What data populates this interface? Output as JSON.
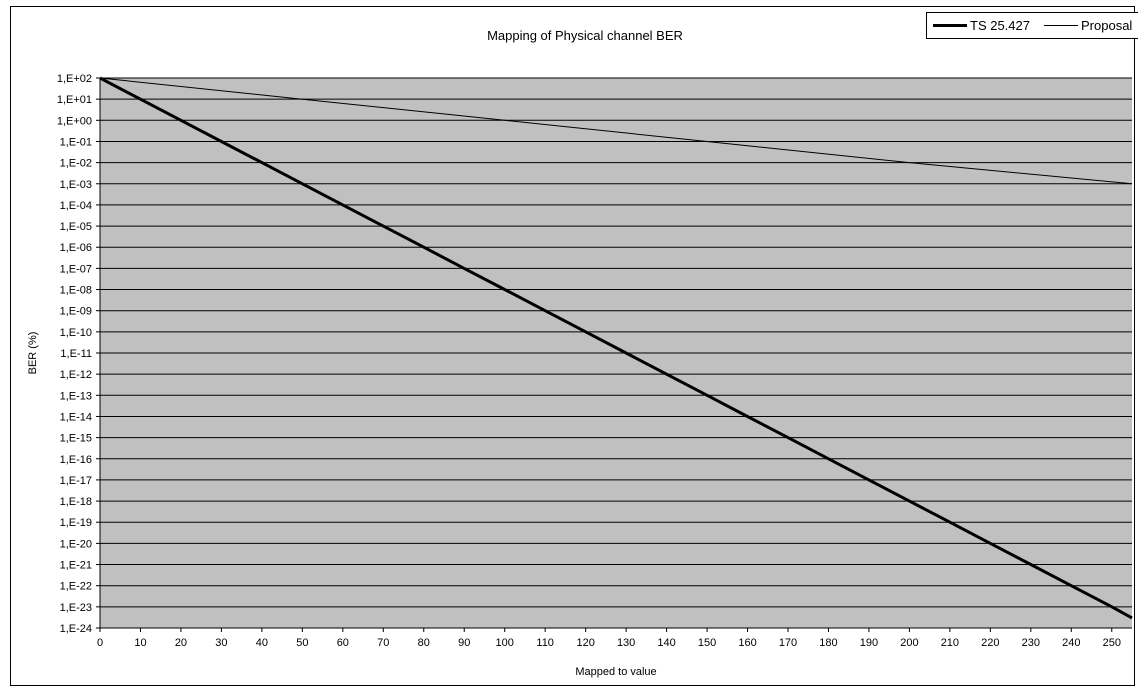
{
  "chart_data": {
    "type": "line",
    "title": "Mapping of Physical channel BER",
    "xlabel": "Mapped to value",
    "ylabel": "BER (%)",
    "xlim": [
      0,
      255
    ],
    "ylim_log10": [
      -24,
      2
    ],
    "y_scale": "log",
    "grid": true,
    "legend_position": "top-right",
    "x_ticks": [
      "0",
      "10",
      "20",
      "30",
      "40",
      "50",
      "60",
      "70",
      "80",
      "90",
      "100",
      "110",
      "120",
      "130",
      "140",
      "150",
      "160",
      "170",
      "180",
      "190",
      "200",
      "210",
      "220",
      "230",
      "240",
      "250"
    ],
    "y_ticks": [
      "1,E+02",
      "1,E+01",
      "1,E+00",
      "1,E-01",
      "1,E-02",
      "1,E-03",
      "1,E-04",
      "1,E-05",
      "1,E-06",
      "1,E-07",
      "1,E-08",
      "1,E-09",
      "1,E-10",
      "1,E-11",
      "1,E-12",
      "1,E-13",
      "1,E-14",
      "1,E-15",
      "1,E-16",
      "1,E-17",
      "1,E-18",
      "1,E-19",
      "1,E-20",
      "1,E-21",
      "1,E-22",
      "1,E-23",
      "1,E-24"
    ],
    "series": [
      {
        "name": "TS 25.427",
        "color": "#000000",
        "line": "thick",
        "x": [
          0,
          10,
          20,
          30,
          40,
          50,
          60,
          70,
          80,
          90,
          100,
          110,
          120,
          130,
          140,
          150,
          160,
          170,
          180,
          190,
          200,
          210,
          220,
          230,
          240,
          250,
          255
        ],
        "y": [
          100,
          10,
          1,
          0.1,
          0.01,
          0.001,
          0.0001,
          1e-05,
          1e-06,
          1e-07,
          1e-08,
          1e-09,
          1e-10,
          1e-11,
          1e-12,
          1e-13,
          1e-14,
          1e-15,
          1e-16,
          1e-17,
          1e-18,
          1e-19,
          1e-20,
          1e-21,
          1e-22,
          1e-23,
          3e-24
        ]
      },
      {
        "name": "Proposal",
        "color": "#000000",
        "line": "thin",
        "x": [
          0,
          50,
          100,
          150,
          200,
          255
        ],
        "y": [
          100,
          10,
          1,
          0.1,
          0.01,
          0.001
        ]
      }
    ]
  },
  "legend": {
    "items": [
      {
        "label": "TS 25.427"
      },
      {
        "label": "Proposal"
      }
    ]
  },
  "colors": {
    "plot_background": "#c0c0c0",
    "grid": "#000000",
    "line": "#000000"
  }
}
